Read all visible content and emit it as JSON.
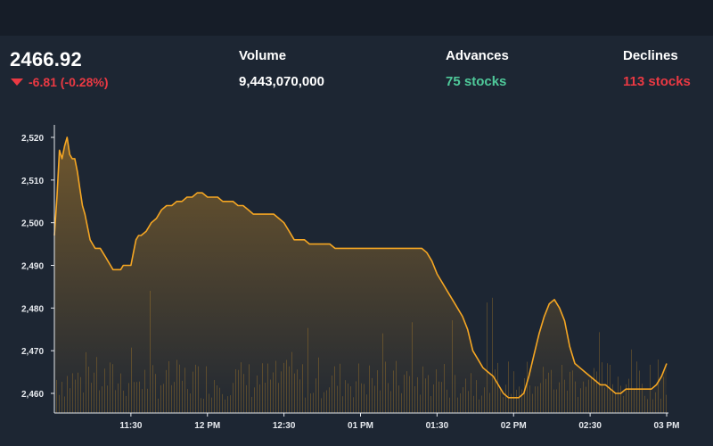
{
  "index": {
    "value": "2466.92",
    "change": "-6.81 (-0.28%)",
    "direction": "down"
  },
  "volume": {
    "label": "Volume",
    "value": "9,443,070,000"
  },
  "advances": {
    "label": "Advances",
    "value": "75 stocks"
  },
  "declines": {
    "label": "Declines",
    "value": "113 stocks"
  },
  "colors": {
    "background": "#1d2633",
    "line": "#f5a623",
    "up": "#4fc99a",
    "down": "#ea3943"
  },
  "chart_data": {
    "type": "line",
    "y_tick_labels": [
      "2,520",
      "2,510",
      "2,500",
      "2,490",
      "2,480",
      "2,470",
      "2,460"
    ],
    "y_ticks": [
      2520,
      2510,
      2500,
      2490,
      2480,
      2470,
      2460
    ],
    "x_tick_labels": [
      "11:30",
      "12 PM",
      "12:30",
      "01 PM",
      "01:30",
      "02 PM",
      "02:30",
      "03 PM"
    ],
    "x_ticks_min": [
      90,
      120,
      150,
      180,
      210,
      240,
      270,
      300
    ],
    "xlim_min": [
      60,
      300
    ],
    "ylim": [
      2457,
      2522
    ],
    "series": [
      {
        "points": [
          [
            60,
            2497
          ],
          [
            61,
            2506
          ],
          [
            62,
            2517
          ],
          [
            63,
            2515
          ],
          [
            64,
            2518
          ],
          [
            65,
            2520
          ],
          [
            66,
            2516
          ],
          [
            67,
            2515
          ],
          [
            68,
            2515
          ],
          [
            69,
            2512
          ],
          [
            70,
            2508
          ],
          [
            71,
            2504
          ],
          [
            72,
            2502
          ],
          [
            73,
            2499
          ],
          [
            74,
            2496
          ],
          [
            75,
            2495
          ],
          [
            76,
            2494
          ],
          [
            77,
            2494
          ],
          [
            78,
            2494
          ],
          [
            79,
            2493
          ],
          [
            80,
            2492
          ],
          [
            81,
            2491
          ],
          [
            82,
            2490
          ],
          [
            83,
            2489
          ],
          [
            84,
            2489
          ],
          [
            85,
            2489
          ],
          [
            86,
            2489
          ],
          [
            87,
            2490
          ],
          [
            88,
            2490
          ],
          [
            89,
            2490
          ],
          [
            90,
            2490
          ],
          [
            91,
            2493
          ],
          [
            92,
            2496
          ],
          [
            93,
            2497
          ],
          [
            94,
            2497
          ],
          [
            96,
            2498
          ],
          [
            98,
            2500
          ],
          [
            100,
            2501
          ],
          [
            102,
            2503
          ],
          [
            104,
            2504
          ],
          [
            106,
            2504
          ],
          [
            108,
            2505
          ],
          [
            110,
            2505
          ],
          [
            112,
            2506
          ],
          [
            114,
            2506
          ],
          [
            116,
            2507
          ],
          [
            118,
            2507
          ],
          [
            120,
            2506
          ],
          [
            122,
            2506
          ],
          [
            124,
            2506
          ],
          [
            126,
            2505
          ],
          [
            128,
            2505
          ],
          [
            130,
            2505
          ],
          [
            132,
            2504
          ],
          [
            134,
            2504
          ],
          [
            136,
            2503
          ],
          [
            138,
            2502
          ],
          [
            140,
            2502
          ],
          [
            142,
            2502
          ],
          [
            144,
            2502
          ],
          [
            146,
            2502
          ],
          [
            148,
            2501
          ],
          [
            150,
            2500
          ],
          [
            152,
            2498
          ],
          [
            154,
            2496
          ],
          [
            156,
            2496
          ],
          [
            158,
            2496
          ],
          [
            160,
            2495
          ],
          [
            162,
            2495
          ],
          [
            164,
            2495
          ],
          [
            166,
            2495
          ],
          [
            168,
            2495
          ],
          [
            170,
            2494
          ],
          [
            172,
            2494
          ],
          [
            174,
            2494
          ],
          [
            176,
            2494
          ],
          [
            178,
            2494
          ],
          [
            180,
            2494
          ],
          [
            182,
            2494
          ],
          [
            184,
            2494
          ],
          [
            186,
            2494
          ],
          [
            188,
            2494
          ],
          [
            190,
            2494
          ],
          [
            192,
            2494
          ],
          [
            194,
            2494
          ],
          [
            196,
            2494
          ],
          [
            198,
            2494
          ],
          [
            200,
            2494
          ],
          [
            202,
            2494
          ],
          [
            204,
            2494
          ],
          [
            206,
            2493
          ],
          [
            208,
            2491
          ],
          [
            210,
            2488
          ],
          [
            212,
            2486
          ],
          [
            214,
            2484
          ],
          [
            216,
            2482
          ],
          [
            218,
            2480
          ],
          [
            220,
            2478
          ],
          [
            222,
            2475
          ],
          [
            224,
            2470
          ],
          [
            226,
            2468
          ],
          [
            228,
            2466
          ],
          [
            230,
            2465
          ],
          [
            232,
            2464
          ],
          [
            234,
            2462
          ],
          [
            236,
            2460
          ],
          [
            238,
            2459
          ],
          [
            240,
            2459
          ],
          [
            242,
            2459
          ],
          [
            244,
            2460
          ],
          [
            246,
            2464
          ],
          [
            248,
            2469
          ],
          [
            250,
            2474
          ],
          [
            252,
            2478
          ],
          [
            254,
            2481
          ],
          [
            256,
            2482
          ],
          [
            258,
            2480
          ],
          [
            260,
            2477
          ],
          [
            262,
            2471
          ],
          [
            264,
            2467
          ],
          [
            266,
            2466
          ],
          [
            268,
            2465
          ],
          [
            270,
            2464
          ],
          [
            272,
            2463
          ],
          [
            274,
            2462
          ],
          [
            276,
            2462
          ],
          [
            278,
            2461
          ],
          [
            280,
            2460
          ],
          [
            282,
            2460
          ],
          [
            284,
            2461
          ],
          [
            286,
            2461
          ],
          [
            288,
            2461
          ],
          [
            290,
            2461
          ],
          [
            292,
            2461
          ],
          [
            294,
            2461
          ],
          [
            296,
            2462
          ],
          [
            298,
            2464
          ],
          [
            300,
            2467
          ]
        ]
      }
    ],
    "volume_bars": {
      "note_absent": true
    }
  }
}
